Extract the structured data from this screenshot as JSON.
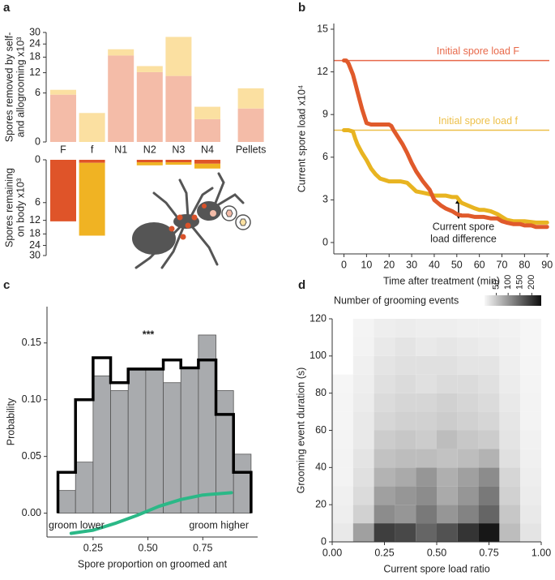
{
  "chart_data": [
    {
      "type": "stacked-bar",
      "panel": "a",
      "ylabel": [
        "Spores removed by self-",
        "and allogrooming x10³"
      ],
      "categories": [
        "F",
        "f",
        "N1",
        "N2",
        "N3",
        "N4",
        "Pellets"
      ],
      "scale": "sqrt",
      "ylim": [
        0,
        30
      ],
      "yticks": [
        0,
        6,
        12,
        18,
        24,
        30
      ],
      "series": [
        {
          "color": "#f4bca8",
          "values": [
            5.6,
            0,
            18.7,
            12.2,
            10.9,
            1.3,
            2.8
          ]
        },
        {
          "color": "#fbe0a1",
          "values": [
            1.2,
            2.1,
            2.8,
            2.2,
            16.7,
            1.8,
            4.4
          ]
        }
      ]
    },
    {
      "type": "stacked-bar",
      "ylabel": [
        "Spores remaining",
        "on body x10³"
      ],
      "scale": "sqrt",
      "ylim": [
        0,
        30
      ],
      "yticks": [
        0,
        6,
        12,
        18,
        24,
        30
      ],
      "series": [
        {
          "color": "#df5429",
          "values": [
            12.4,
            0.03,
            0,
            0.02,
            0.02,
            0.05
          ]
        },
        {
          "color": "#f0b323",
          "values": [
            0,
            18.8,
            0,
            0.08,
            0.06,
            0.2
          ]
        }
      ]
    },
    {
      "type": "line",
      "panel": "b",
      "xlabel": "Time after treatment (min)",
      "ylabel": "Current spore load x10⁴",
      "xlim": [
        -4.5,
        91
      ],
      "xticks": [
        0,
        10,
        20,
        30,
        40,
        50,
        60,
        70,
        80,
        90
      ],
      "ylim": [
        -0.8,
        15.4
      ],
      "yticks": [
        0,
        3,
        6,
        9,
        12,
        15
      ],
      "hlines": [
        {
          "y": 12.8,
          "label": "Initial spore load F",
          "color": "#e8694a"
        },
        {
          "y": 7.9,
          "label": "Initial spore load f",
          "color": "#edc04a"
        }
      ],
      "annotation": [
        "Current spore",
        "load difference"
      ],
      "series": [
        {
          "color": "#e8b421",
          "x": [
            0,
            2,
            4,
            5,
            6,
            8,
            10,
            12,
            14,
            16,
            18,
            20,
            22,
            25,
            28,
            30,
            32,
            35,
            38,
            40,
            45,
            48,
            50,
            52,
            55,
            58,
            60,
            62,
            65,
            68,
            70,
            72,
            75,
            78,
            80,
            85,
            90
          ],
          "values": [
            7.9,
            7.9,
            7.8,
            7.3,
            6.9,
            6.3,
            5.8,
            5.2,
            4.8,
            4.5,
            4.4,
            4.3,
            4.3,
            4.3,
            4.2,
            3.9,
            3.6,
            3.5,
            3.4,
            3.3,
            3.3,
            3.2,
            3.2,
            2.8,
            2.6,
            2.4,
            2.3,
            2.3,
            2.2,
            2.0,
            1.8,
            1.6,
            1.5,
            1.5,
            1.5,
            1.4,
            1.4
          ]
        },
        {
          "color": "#e05a2b",
          "x": [
            0,
            1,
            2,
            3,
            4,
            5,
            6,
            7,
            8,
            9,
            10,
            12,
            15,
            18,
            20,
            21,
            22,
            24,
            26,
            28,
            30,
            32,
            35,
            38,
            40,
            43,
            45,
            48,
            50,
            52,
            55,
            58,
            60,
            62,
            65,
            68,
            70,
            72,
            75,
            78,
            80,
            83,
            85,
            88,
            90
          ],
          "values": [
            12.8,
            12.8,
            12.6,
            12.2,
            11.8,
            11.2,
            10.6,
            10.0,
            9.4,
            8.9,
            8.4,
            8.3,
            8.3,
            8.3,
            8.3,
            8.2,
            7.9,
            7.4,
            6.9,
            6.3,
            5.6,
            5.0,
            4.3,
            3.7,
            3.0,
            2.6,
            2.4,
            2.2,
            2.0,
            1.9,
            1.9,
            1.8,
            1.8,
            1.8,
            1.7,
            1.7,
            1.5,
            1.4,
            1.3,
            1.3,
            1.2,
            1.2,
            1.1,
            1.1,
            1.1
          ]
        }
      ]
    },
    {
      "type": "histogram",
      "panel": "c",
      "xlabel": "Spore proportion on groomed ant",
      "ylabel": "Probability",
      "significance": "***",
      "left_label": "groom lower",
      "right_label": "groom higher",
      "xlim": [
        0.04,
        1.0
      ],
      "xticks": [
        0.25,
        {
          "value": 0.5,
          "label": "0.50"
        },
        0.75
      ],
      "ylim": [
        -0.021,
        0.182
      ],
      "yticks": [
        {
          "value": 0,
          "label": "0.00"
        },
        0.05,
        {
          "value": 0.1,
          "label": "0.10"
        },
        0.15
      ],
      "bins": [
        0.09,
        0.17,
        0.25,
        0.33,
        0.41,
        0.49,
        0.57,
        0.65,
        0.73,
        0.81,
        0.89,
        0.97
      ],
      "series": [
        {
          "color": "#a9abae",
          "values": [
            0.02,
            0.045,
            0.121,
            0.108,
            0.128,
            0.128,
            0.115,
            0.128,
            0.157,
            0.108,
            0.052
          ]
        },
        {
          "color": "#000000",
          "style": "step",
          "values": [
            0.036,
            0.1,
            0.137,
            0.115,
            0.127,
            0.127,
            0.135,
            0.128,
            0.135,
            0.087,
            0.036
          ]
        }
      ],
      "curve": {
        "color": "#2bb887",
        "x": [
          0.15,
          0.25,
          0.35,
          0.45,
          0.5,
          0.55,
          0.65,
          0.75,
          0.88
        ],
        "values": [
          -0.0178,
          -0.015,
          -0.009,
          -0.002,
          0.002,
          0.006,
          0.012,
          0.016,
          0.018
        ]
      }
    },
    {
      "type": "heatmap",
      "panel": "d",
      "xlabel": "Current spore load ratio",
      "ylabel": "Grooming event duration (s)",
      "xlim": [
        0,
        1
      ],
      "xticks": [
        {
          "value": 0,
          "label": "0.00"
        },
        0.25,
        {
          "value": 0.5,
          "label": "0.50"
        },
        0.75,
        {
          "value": 1,
          "label": "1.00"
        }
      ],
      "ylim": [
        0,
        120
      ],
      "yticks": [
        0,
        20,
        40,
        60,
        80,
        100,
        120
      ],
      "x_bins": [
        0,
        0.1,
        0.2,
        0.3,
        0.4,
        0.5,
        0.6,
        0.7,
        0.8,
        0.9,
        1.0
      ],
      "y_bins": [
        0,
        10,
        20,
        30,
        40,
        50,
        60,
        70,
        80,
        90,
        100,
        110,
        120
      ],
      "colorbar": {
        "label": "Number of grooming events",
        "lim": [
          0,
          240
        ],
        "ticks": [
          50,
          100,
          150,
          200
        ]
      },
      "values": [
        [
          15,
          90,
          190,
          180,
          150,
          170,
          200,
          230,
          60,
          20
        ],
        [
          10,
          40,
          110,
          100,
          130,
          100,
          120,
          150,
          50,
          15
        ],
        [
          8,
          30,
          90,
          100,
          110,
          80,
          100,
          130,
          40,
          12
        ],
        [
          5,
          25,
          70,
          80,
          100,
          75,
          90,
          110,
          35,
          10
        ],
        [
          5,
          20,
          55,
          60,
          60,
          55,
          60,
          70,
          25,
          8
        ],
        [
          4,
          15,
          45,
          50,
          45,
          60,
          50,
          45,
          20,
          7
        ],
        [
          3,
          15,
          35,
          40,
          40,
          45,
          40,
          35,
          18,
          5
        ],
        [
          3,
          12,
          30,
          35,
          35,
          40,
          35,
          30,
          15,
          5
        ],
        [
          2,
          10,
          25,
          30,
          25,
          30,
          30,
          25,
          12,
          4
        ],
        [
          null,
          8,
          20,
          25,
          25,
          25,
          20,
          20,
          10,
          3
        ],
        [
          null,
          5,
          15,
          20,
          15,
          18,
          15,
          12,
          8,
          2
        ],
        [
          null,
          4,
          10,
          12,
          10,
          10,
          8,
          8,
          6,
          2
        ]
      ]
    }
  ]
}
